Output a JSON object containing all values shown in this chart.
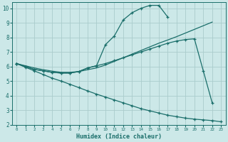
{
  "xlabel": "Humidex (Indice chaleur)",
  "bg_color": "#cce8e8",
  "grid_color": "#aacccc",
  "line_color": "#1a6e6a",
  "line1_x": [
    0,
    1,
    2,
    3,
    4,
    5,
    6,
    7,
    8,
    9,
    10,
    11,
    12,
    13,
    14,
    15,
    16,
    17
  ],
  "line1_y": [
    6.2,
    6.0,
    5.8,
    5.7,
    5.6,
    5.55,
    5.55,
    5.65,
    5.9,
    6.05,
    7.5,
    8.1,
    9.2,
    9.7,
    10.0,
    10.2,
    10.2,
    9.4
  ],
  "line2_x": [
    0,
    1,
    2,
    3,
    4,
    5,
    6,
    7,
    8,
    9,
    10,
    11,
    12,
    13,
    14,
    15,
    16,
    17,
    18,
    19,
    20,
    21,
    22
  ],
  "line2_y": [
    6.2,
    6.05,
    5.9,
    5.78,
    5.68,
    5.6,
    5.6,
    5.65,
    5.78,
    5.9,
    6.1,
    6.35,
    6.6,
    6.85,
    7.1,
    7.35,
    7.6,
    7.82,
    8.05,
    8.3,
    8.55,
    8.8,
    9.05
  ],
  "line3_x": [
    0,
    1,
    2,
    3,
    4,
    5,
    6,
    7,
    8,
    9,
    10,
    11,
    12,
    13,
    14,
    15,
    16,
    17,
    18,
    19,
    20,
    21,
    22
  ],
  "line3_y": [
    6.2,
    6.0,
    5.8,
    5.7,
    5.6,
    5.55,
    5.55,
    5.65,
    5.9,
    6.05,
    6.2,
    6.4,
    6.6,
    6.8,
    7.0,
    7.2,
    7.4,
    7.6,
    7.75,
    7.85,
    7.9,
    5.7,
    3.5
  ],
  "line4_x": [
    0,
    1,
    2,
    3,
    4,
    5,
    6,
    7,
    8,
    9,
    10,
    11,
    12,
    13,
    14,
    15,
    16,
    17,
    18,
    19,
    20,
    21,
    22,
    23
  ],
  "line4_y": [
    6.2,
    5.95,
    5.7,
    5.45,
    5.2,
    5.0,
    4.78,
    4.55,
    4.32,
    4.1,
    3.9,
    3.7,
    3.5,
    3.3,
    3.1,
    2.95,
    2.8,
    2.65,
    2.55,
    2.45,
    2.38,
    2.33,
    2.28,
    2.2
  ],
  "xlim": [
    -0.5,
    23.5
  ],
  "ylim": [
    2,
    10.4
  ],
  "yticks": [
    2,
    3,
    4,
    5,
    6,
    7,
    8,
    9,
    10
  ],
  "xticks": [
    0,
    1,
    2,
    3,
    4,
    5,
    6,
    7,
    8,
    9,
    10,
    11,
    12,
    13,
    14,
    15,
    16,
    17,
    18,
    19,
    20,
    21,
    22,
    23
  ]
}
